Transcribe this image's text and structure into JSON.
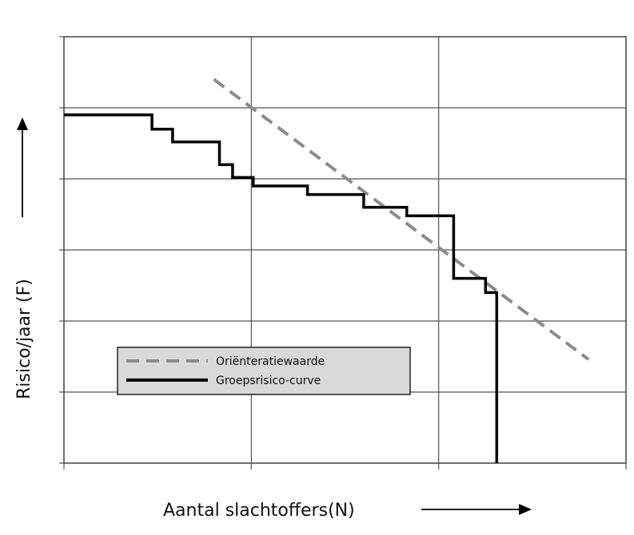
{
  "chart_data": {
    "type": "line",
    "xlabel": "Aantal slachtoffers(N)",
    "ylabel": "Risico/jaar (F)",
    "xlim": [
      0,
      3
    ],
    "ylim": [
      0,
      6
    ],
    "xscale": "log-decades",
    "yscale": "log-decades",
    "grid": true,
    "tick_labels_shown": false,
    "legend_position": "lower-left",
    "series": [
      {
        "name": "Oriënteratiewaarde",
        "style": "dashed",
        "color": "#8c8c8c",
        "x": [
          0.8,
          2.8
        ],
        "y": [
          5.4,
          1.46
        ]
      },
      {
        "name": "Groepsrisico-curve",
        "style": "step",
        "color": "#000000",
        "x": [
          0,
          0.47,
          0.47,
          0.58,
          0.58,
          0.83,
          0.83,
          0.9,
          0.9,
          1.01,
          1.01,
          1.3,
          1.3,
          1.6,
          1.6,
          1.83,
          1.83,
          2.08,
          2.08,
          2.25,
          2.25,
          2.31,
          2.31
        ],
        "y": [
          4.9,
          4.9,
          4.7,
          4.7,
          4.52,
          4.52,
          4.2,
          4.2,
          4.02,
          4.02,
          3.9,
          3.9,
          3.78,
          3.78,
          3.6,
          3.6,
          3.48,
          3.48,
          2.6,
          2.6,
          2.4,
          2.4,
          0
        ]
      }
    ]
  }
}
